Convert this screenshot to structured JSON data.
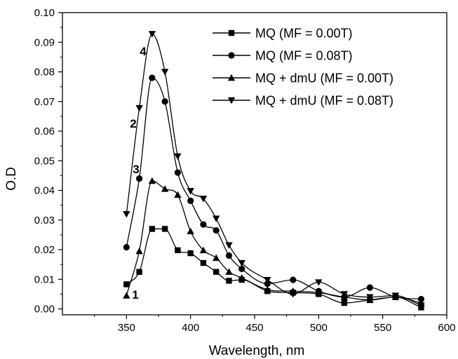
{
  "chart_data": {
    "type": "line",
    "title": "",
    "xlabel": "Wavelength, nm",
    "ylabel": "O.D",
    "xlim": [
      300,
      600
    ],
    "ylim": [
      -0.002,
      0.1
    ],
    "xticks": [
      350,
      400,
      450,
      500,
      550,
      600
    ],
    "xtick_labels": [
      "350",
      "400",
      "450",
      "500",
      "550",
      "600"
    ],
    "yticks": [
      0.0,
      0.01,
      0.02,
      0.03,
      0.04,
      0.05,
      0.06,
      0.07,
      0.08,
      0.09,
      0.1
    ],
    "ytick_labels": [
      "0.00",
      "0.01",
      "0.02",
      "0.03",
      "0.04",
      "0.05",
      "0.06",
      "0.07",
      "0.08",
      "0.09",
      "0.10"
    ],
    "grid": false,
    "legend_position": "top-right",
    "series": [
      {
        "name": "MQ (MF = 0.00T)",
        "marker": "square",
        "curve_label": "1",
        "x": [
          350,
          360,
          370,
          380,
          390,
          400,
          410,
          420,
          430,
          440,
          460,
          480,
          500,
          520,
          540,
          560,
          580
        ],
        "y": [
          0.0083,
          0.0125,
          0.027,
          0.027,
          0.0198,
          0.0188,
          0.0155,
          0.0125,
          0.0095,
          0.0098,
          0.006,
          0.0055,
          0.005,
          0.002,
          0.003,
          0.004,
          0.0005
        ]
      },
      {
        "name": "MQ (MF = 0.08T)",
        "marker": "circle",
        "curve_label": "2",
        "x": [
          350,
          360,
          370,
          380,
          390,
          400,
          410,
          420,
          430,
          440,
          460,
          480,
          500,
          520,
          540,
          560,
          580
        ],
        "y": [
          0.0208,
          0.044,
          0.078,
          0.07,
          0.046,
          0.0365,
          0.0285,
          0.0265,
          0.018,
          0.0135,
          0.0085,
          0.0098,
          0.006,
          0.004,
          0.0072,
          0.004,
          0.0033
        ]
      },
      {
        "name": "MQ + dmU (MF = 0.00T)",
        "marker": "triangle-up",
        "curve_label": "3",
        "x": [
          350,
          360,
          370,
          380,
          390,
          400,
          410,
          420,
          430,
          440,
          460,
          480,
          500,
          520,
          540,
          560,
          580
        ],
        "y": [
          0.0045,
          0.0195,
          0.0432,
          0.0405,
          0.0385,
          0.0262,
          0.0198,
          0.0172,
          0.0125,
          0.0105,
          0.0065,
          0.006,
          0.0055,
          0.004,
          0.003,
          0.004,
          0.002
        ]
      },
      {
        "name": "MQ + dmU (MF = 0.08T)",
        "marker": "triangle-down",
        "curve_label": "4",
        "x": [
          350,
          360,
          370,
          380,
          390,
          400,
          410,
          420,
          430,
          440,
          460,
          480,
          500,
          520,
          540,
          560,
          580
        ],
        "y": [
          0.032,
          0.0678,
          0.0928,
          0.08,
          0.0515,
          0.0398,
          0.0372,
          0.0305,
          0.0215,
          0.0155,
          0.0098,
          0.005,
          0.009,
          0.005,
          0.004,
          0.0045,
          0.0012
        ]
      }
    ]
  }
}
